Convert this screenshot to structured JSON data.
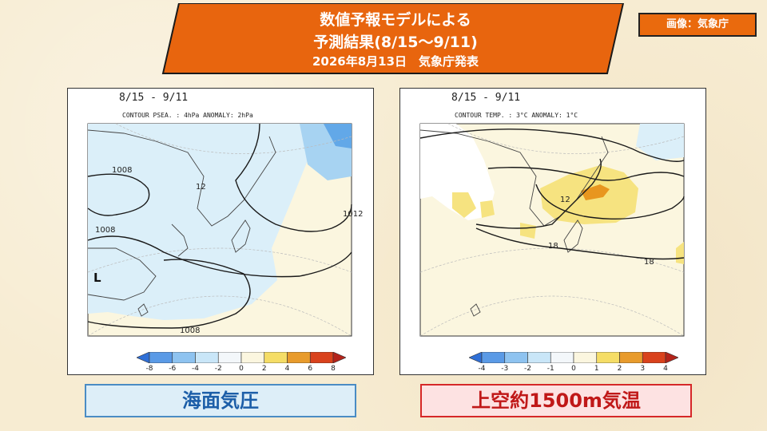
{
  "banner": {
    "line1": "数値予報モデルによる",
    "line2": "予測結果(8/15～9/11)",
    "line3": "2026年8月13日　気象庁発表",
    "color": "#e8650e"
  },
  "credit": {
    "text": "画像：気象庁",
    "color": "#ea6a0d"
  },
  "panels": {
    "left": {
      "period": "8/15 - 9/11",
      "contour_info": "CONTOUR PSEA. :  4hPa    ANOMALY:  2hPa",
      "contour_labels": [
        "1008",
        "1008",
        "1008",
        "1008",
        "1008",
        "1012"
      ],
      "marker": "L",
      "center_label": "12",
      "colorbar_ticks": [
        "-8",
        "-6",
        "-4",
        "-2",
        "0",
        "2",
        "4",
        "6",
        "8"
      ],
      "colorbar_colors": [
        "#2f6fd6",
        "#5a9ae6",
        "#8ec3f0",
        "#c9e6f8",
        "#f3f7fa",
        "#fbf6df",
        "#f5dd66",
        "#e89b2c",
        "#d9421c",
        "#b3231a"
      ],
      "caption": "海面気圧"
    },
    "right": {
      "period": "8/15 - 9/11",
      "contour_info": "CONTOUR TEMP. :  3°C    ANOMALY:  1°C",
      "contour_labels": [
        "12",
        "18",
        "18"
      ],
      "colorbar_ticks": [
        "-4",
        "-3",
        "-2",
        "-1",
        "0",
        "1",
        "2",
        "3",
        "4"
      ],
      "colorbar_colors": [
        "#2f6fd6",
        "#5a9ae6",
        "#8ec3f0",
        "#c9e6f8",
        "#f3f7fa",
        "#fbf6df",
        "#f5dd66",
        "#e89b2c",
        "#d9421c",
        "#b3231a"
      ],
      "caption": "上空約1500m気温"
    }
  }
}
